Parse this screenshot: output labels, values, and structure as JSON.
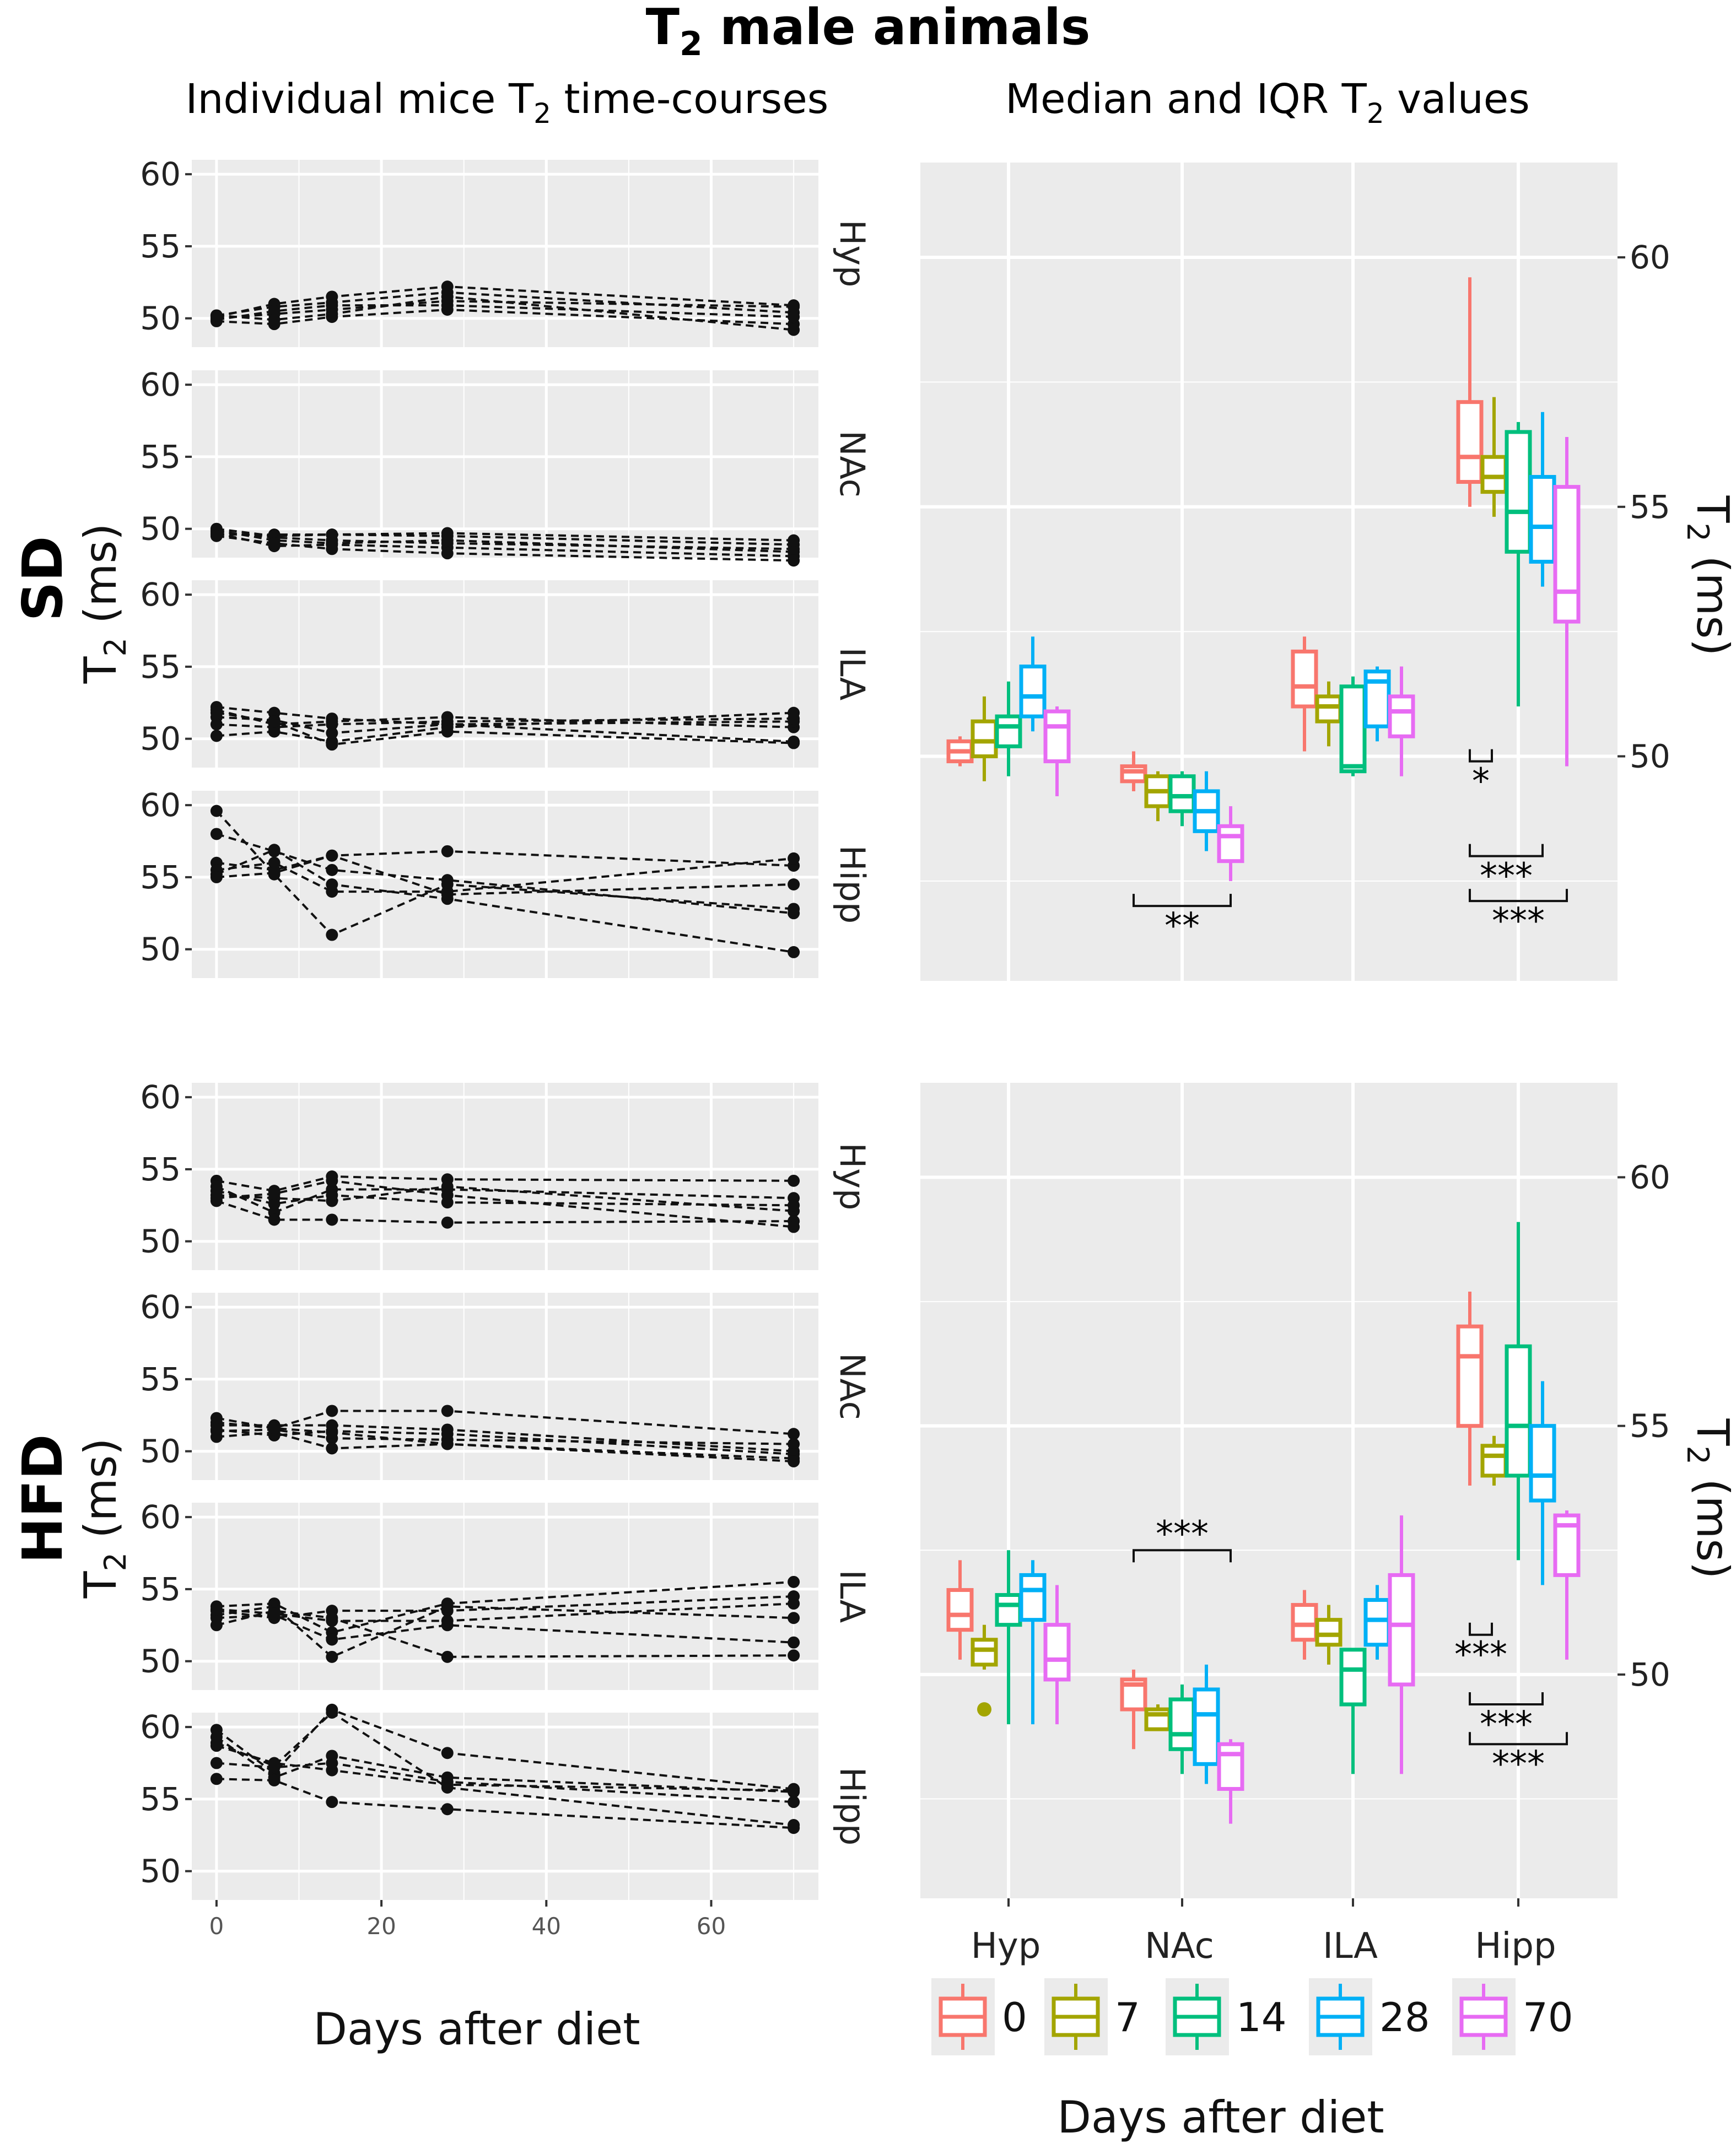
{
  "figure": {
    "title_main": "T",
    "title_sub": "2",
    "title_rest": " male animals",
    "left_subtitle_a": "Individual mice T",
    "left_subtitle_b": "2",
    "left_subtitle_c": " time-courses",
    "right_subtitle_a": "Median and IQR T",
    "right_subtitle_b": "2",
    "right_subtitle_c": " values",
    "row_labels": [
      "SD",
      "HFD"
    ],
    "left_ylabel_a": "T",
    "left_ylabel_b": "2",
    "left_ylabel_c": " (ms)",
    "right_ylabel_a": "T",
    "right_ylabel_b": "2",
    "right_ylabel_c": " (ms)",
    "left_xlabel": "Days after diet",
    "right_xlabel": "Days after diet",
    "legend_labels": [
      "0",
      "7",
      "14",
      "28",
      "70"
    ]
  },
  "colors": {
    "panel_bg": "#ebebeb",
    "grid": "#ffffff",
    "day0": "#F8766D",
    "day7": "#A3A500",
    "day14": "#00BF7D",
    "day28": "#00B0F6",
    "day70": "#E76BF3"
  },
  "chart_data": [
    {
      "type": "line",
      "title": "Individual mice T2 time-courses",
      "xlabel": "Days after diet",
      "ylabel": "T2 (ms)",
      "x": [
        0,
        7,
        14,
        28,
        70
      ],
      "x_ticks": [
        0,
        20,
        40,
        60
      ],
      "xlim": [
        -3,
        73
      ],
      "ylim": [
        48,
        61
      ],
      "y_ticks": [
        50,
        55,
        60
      ],
      "panels": [
        {
          "group": "SD",
          "region": "Hyp",
          "series": [
            [
              50.0,
              50.3,
              50.6,
              51.2,
              50.8
            ],
            [
              50.2,
              50.8,
              51.1,
              51.8,
              50.4
            ],
            [
              49.8,
              49.6,
              50.1,
              50.6,
              49.6
            ],
            [
              50.1,
              51.0,
              51.5,
              52.2,
              50.9
            ],
            [
              49.9,
              50.5,
              50.9,
              50.9,
              50.1
            ],
            [
              50.2,
              49.9,
              50.3,
              51.5,
              49.2
            ]
          ]
        },
        {
          "group": "SD",
          "region": "NAc",
          "series": [
            [
              49.8,
              49.4,
              49.2,
              49.0,
              48.6
            ],
            [
              49.6,
              49.6,
              49.6,
              49.5,
              48.9
            ],
            [
              50.0,
              49.5,
              49.6,
              49.7,
              49.2
            ],
            [
              49.7,
              48.8,
              48.9,
              48.7,
              48.1
            ],
            [
              49.9,
              49.2,
              49.0,
              49.2,
              48.4
            ],
            [
              49.5,
              49.0,
              48.6,
              48.3,
              47.8
            ]
          ]
        },
        {
          "group": "SD",
          "region": "ILA",
          "series": [
            [
              52.0,
              51.0,
              51.2,
              51.5,
              50.8
            ],
            [
              51.5,
              51.3,
              50.4,
              51.0,
              51.2
            ],
            [
              50.2,
              50.5,
              49.8,
              50.8,
              51.8
            ],
            [
              52.2,
              51.8,
              51.4,
              51.0,
              49.8
            ],
            [
              51.0,
              50.8,
              51.0,
              51.2,
              51.4
            ],
            [
              51.8,
              51.2,
              49.6,
              50.5,
              49.7
            ]
          ]
        },
        {
          "group": "SD",
          "region": "Hipp",
          "series": [
            [
              59.6,
              55.2,
              51.0,
              54.5,
              52.8
            ],
            [
              58.0,
              56.8,
              55.5,
              54.8,
              52.5
            ],
            [
              56.0,
              55.5,
              56.5,
              56.8,
              55.8
            ],
            [
              55.5,
              56.0,
              54.0,
              54.0,
              56.3
            ],
            [
              55.2,
              56.9,
              54.5,
              53.5,
              49.8
            ],
            [
              55.0,
              55.3,
              56.5,
              53.8,
              54.5
            ]
          ]
        },
        {
          "group": "HFD",
          "region": "Hyp",
          "series": [
            [
              54.2,
              53.5,
              54.5,
              54.3,
              54.2
            ],
            [
              53.8,
              52.0,
              53.6,
              53.6,
              53.0
            ],
            [
              53.2,
              53.0,
              52.8,
              53.8,
              52.1
            ],
            [
              52.8,
              51.5,
              51.5,
              51.3,
              51.4
            ],
            [
              53.5,
              52.6,
              53.2,
              52.7,
              52.5
            ],
            [
              53.0,
              53.3,
              54.2,
              53.2,
              51.0
            ]
          ]
        },
        {
          "group": "HFD",
          "region": "NAc",
          "series": [
            [
              52.0,
              51.6,
              52.8,
              52.8,
              51.2
            ],
            [
              51.8,
              51.8,
              51.8,
              51.5,
              50.0
            ],
            [
              51.4,
              51.5,
              50.9,
              50.8,
              50.5
            ],
            [
              51.0,
              51.3,
              50.2,
              50.5,
              49.5
            ],
            [
              51.5,
              51.1,
              51.4,
              51.2,
              49.8
            ],
            [
              52.3,
              51.6,
              51.3,
              50.5,
              49.3
            ]
          ]
        },
        {
          "group": "HFD",
          "region": "ILA",
          "series": [
            [
              53.8,
              54.0,
              52.0,
              54.0,
              55.5
            ],
            [
              53.5,
              53.0,
              53.5,
              53.5,
              54.5
            ],
            [
              53.2,
              53.8,
              50.3,
              53.8,
              53.0
            ],
            [
              53.0,
              53.2,
              51.5,
              52.5,
              51.3
            ],
            [
              52.5,
              53.5,
              53.0,
              50.3,
              50.4
            ],
            [
              53.6,
              53.3,
              52.8,
              52.8,
              54.0
            ]
          ]
        },
        {
          "group": "HFD",
          "region": "Hipp",
          "series": [
            [
              59.8,
              56.8,
              61.2,
              58.2,
              55.7
            ],
            [
              59.3,
              56.5,
              58.0,
              56.5,
              55.5
            ],
            [
              58.7,
              57.5,
              57.0,
              56.0,
              55.6
            ],
            [
              57.5,
              57.2,
              57.5,
              56.2,
              54.8
            ],
            [
              56.4,
              56.3,
              54.8,
              54.3,
              53.0
            ],
            [
              58.9,
              57.3,
              61.0,
              55.8,
              53.2
            ]
          ]
        }
      ]
    },
    {
      "type": "box",
      "title": "Median and IQR T2 values",
      "xlabel": "Days after diet",
      "ylabel": "T2 (ms)",
      "categories": [
        "Hyp",
        "NAc",
        "ILA",
        "Hipp"
      ],
      "groups": [
        "0",
        "7",
        "14",
        "28",
        "70"
      ],
      "ylim": [
        45.5,
        61.9
      ],
      "y_ticks": [
        50,
        55,
        60
      ],
      "panels": [
        {
          "row": "SD",
          "boxes": [
            {
              "region": "Hyp",
              "day": "0",
              "min": 49.8,
              "q1": 49.9,
              "median": 50.1,
              "q3": 50.3,
              "max": 50.4
            },
            {
              "region": "Hyp",
              "day": "7",
              "min": 49.5,
              "q1": 50.0,
              "median": 50.3,
              "q3": 50.7,
              "max": 51.2
            },
            {
              "region": "Hyp",
              "day": "14",
              "min": 49.6,
              "q1": 50.2,
              "median": 50.6,
              "q3": 50.8,
              "max": 51.5
            },
            {
              "region": "Hyp",
              "day": "28",
              "min": 50.5,
              "q1": 50.8,
              "median": 51.2,
              "q3": 51.8,
              "max": 52.4
            },
            {
              "region": "Hyp",
              "day": "70",
              "min": 49.2,
              "q1": 49.9,
              "median": 50.6,
              "q3": 50.9,
              "max": 51.0
            },
            {
              "region": "NAc",
              "day": "0",
              "min": 49.3,
              "q1": 49.5,
              "median": 49.7,
              "q3": 49.8,
              "max": 50.1
            },
            {
              "region": "NAc",
              "day": "7",
              "min": 48.7,
              "q1": 49.0,
              "median": 49.3,
              "q3": 49.6,
              "max": 49.7
            },
            {
              "region": "NAc",
              "day": "14",
              "min": 48.6,
              "q1": 48.9,
              "median": 49.2,
              "q3": 49.6,
              "max": 49.7
            },
            {
              "region": "NAc",
              "day": "28",
              "min": 48.1,
              "q1": 48.5,
              "median": 48.9,
              "q3": 49.3,
              "max": 49.7
            },
            {
              "region": "NAc",
              "day": "70",
              "min": 47.5,
              "q1": 47.9,
              "median": 48.4,
              "q3": 48.6,
              "max": 49.0
            },
            {
              "region": "ILA",
              "day": "0",
              "min": 50.1,
              "q1": 51.0,
              "median": 51.4,
              "q3": 52.1,
              "max": 52.4
            },
            {
              "region": "ILA",
              "day": "7",
              "min": 50.2,
              "q1": 50.7,
              "median": 51.0,
              "q3": 51.2,
              "max": 51.5
            },
            {
              "region": "ILA",
              "day": "14",
              "min": 49.6,
              "q1": 49.7,
              "median": 49.8,
              "q3": 51.4,
              "max": 51.6
            },
            {
              "region": "ILA",
              "day": "28",
              "min": 50.3,
              "q1": 50.6,
              "median": 51.5,
              "q3": 51.7,
              "max": 51.8
            },
            {
              "region": "ILA",
              "day": "70",
              "min": 49.6,
              "q1": 50.4,
              "median": 50.9,
              "q3": 51.2,
              "max": 51.8
            },
            {
              "region": "Hipp",
              "day": "0",
              "min": 55.0,
              "q1": 55.5,
              "median": 56.0,
              "q3": 57.1,
              "max": 59.6
            },
            {
              "region": "Hipp",
              "day": "7",
              "min": 54.8,
              "q1": 55.3,
              "median": 55.6,
              "q3": 56.0,
              "max": 57.2
            },
            {
              "region": "Hipp",
              "day": "14",
              "min": 51.0,
              "q1": 54.1,
              "median": 54.9,
              "q3": 56.5,
              "max": 56.7
            },
            {
              "region": "Hipp",
              "day": "28",
              "min": 53.4,
              "q1": 53.9,
              "median": 54.6,
              "q3": 55.6,
              "max": 56.9
            },
            {
              "region": "Hipp",
              "day": "70",
              "min": 49.8,
              "q1": 52.7,
              "median": 53.3,
              "q3": 55.4,
              "max": 56.4
            }
          ],
          "significance": [
            {
              "label": "**",
              "region": "NAc",
              "from": "0",
              "to": "70",
              "y": 47.0,
              "position": "below"
            },
            {
              "label": "*",
              "region": "Hipp",
              "from": "0",
              "to": "0.3",
              "y": 49.9,
              "position": "below"
            },
            {
              "label": "***",
              "region": "Hipp",
              "from": "0",
              "to": "28",
              "y": 48.0,
              "position": "below"
            },
            {
              "label": "***",
              "region": "Hipp",
              "from": "0",
              "to": "70",
              "y": 47.1,
              "position": "below"
            }
          ]
        },
        {
          "row": "HFD",
          "boxes": [
            {
              "region": "Hyp",
              "day": "0",
              "min": 50.3,
              "q1": 50.9,
              "median": 51.2,
              "q3": 51.7,
              "max": 52.3
            },
            {
              "region": "Hyp",
              "day": "7",
              "min": 50.1,
              "q1": 50.2,
              "median": 50.5,
              "q3": 50.7,
              "max": 51.0,
              "outliers": [
                49.3
              ]
            },
            {
              "region": "Hyp",
              "day": "14",
              "min": 49.0,
              "q1": 51.0,
              "median": 51.4,
              "q3": 51.6,
              "max": 52.5
            },
            {
              "region": "Hyp",
              "day": "28",
              "min": 49.0,
              "q1": 51.1,
              "median": 51.7,
              "q3": 52.0,
              "max": 52.3
            },
            {
              "region": "Hyp",
              "day": "70",
              "min": 49.0,
              "q1": 49.9,
              "median": 50.3,
              "q3": 51.0,
              "max": 51.8
            },
            {
              "region": "NAc",
              "day": "0",
              "min": 48.5,
              "q1": 49.3,
              "median": 49.8,
              "q3": 49.9,
              "max": 50.1
            },
            {
              "region": "NAc",
              "day": "7",
              "min": 48.9,
              "q1": 48.9,
              "median": 49.2,
              "q3": 49.3,
              "max": 49.4
            },
            {
              "region": "NAc",
              "day": "14",
              "min": 48.0,
              "q1": 48.5,
              "median": 48.8,
              "q3": 49.5,
              "max": 49.8
            },
            {
              "region": "NAc",
              "day": "28",
              "min": 47.8,
              "q1": 48.2,
              "median": 49.2,
              "q3": 49.7,
              "max": 50.2
            },
            {
              "region": "NAc",
              "day": "70",
              "min": 47.0,
              "q1": 47.7,
              "median": 48.4,
              "q3": 48.6,
              "max": 48.7
            },
            {
              "region": "ILA",
              "day": "0",
              "min": 50.3,
              "q1": 50.7,
              "median": 51.0,
              "q3": 51.4,
              "max": 51.7
            },
            {
              "region": "ILA",
              "day": "7",
              "min": 50.2,
              "q1": 50.6,
              "median": 50.8,
              "q3": 51.1,
              "max": 51.4
            },
            {
              "region": "ILA",
              "day": "14",
              "min": 48.0,
              "q1": 49.4,
              "median": 50.1,
              "q3": 50.5,
              "max": 50.5
            },
            {
              "region": "ILA",
              "day": "28",
              "min": 50.3,
              "q1": 50.6,
              "median": 51.1,
              "q3": 51.5,
              "max": 51.8
            },
            {
              "region": "ILA",
              "day": "70",
              "min": 48.0,
              "q1": 49.8,
              "median": 51.0,
              "q3": 52.0,
              "max": 53.2
            },
            {
              "region": "Hipp",
              "day": "0",
              "min": 53.8,
              "q1": 55.0,
              "median": 56.4,
              "q3": 57.0,
              "max": 57.7
            },
            {
              "region": "Hipp",
              "day": "7",
              "min": 53.8,
              "q1": 54.0,
              "median": 54.4,
              "q3": 54.6,
              "max": 54.8
            },
            {
              "region": "Hipp",
              "day": "14",
              "min": 52.3,
              "q1": 54.0,
              "median": 55.0,
              "q3": 56.6,
              "max": 59.1
            },
            {
              "region": "Hipp",
              "day": "28",
              "min": 51.8,
              "q1": 53.5,
              "median": 54.0,
              "q3": 55.0,
              "max": 55.9
            },
            {
              "region": "Hipp",
              "day": "70",
              "min": 50.3,
              "q1": 52.0,
              "median": 53.0,
              "q3": 53.2,
              "max": 53.3
            }
          ],
          "significance": [
            {
              "label": "***",
              "region": "NAc",
              "from": "0",
              "to": "70",
              "y": 52.5,
              "position": "above"
            },
            {
              "label": "***",
              "region": "Hipp",
              "from": "0",
              "to": "0.3",
              "y": 50.8,
              "position": "below"
            },
            {
              "label": "***",
              "region": "Hipp",
              "from": "0",
              "to": "28",
              "y": 49.4,
              "position": "below"
            },
            {
              "label": "***",
              "region": "Hipp",
              "from": "0",
              "to": "70",
              "y": 48.6,
              "position": "below"
            }
          ]
        }
      ]
    }
  ]
}
